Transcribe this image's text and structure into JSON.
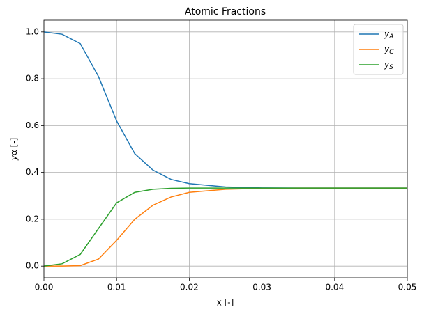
{
  "chart_data": {
    "type": "line",
    "title": "Atomic Fractions",
    "xlabel": "x [-]",
    "ylabel": "yα [-]",
    "x": [
      0,
      0.0025,
      0.005,
      0.0075,
      0.01,
      0.0125,
      0.015,
      0.0175,
      0.02,
      0.025,
      0.03,
      0.035,
      0.04,
      0.045,
      0.05
    ],
    "series": [
      {
        "name": "yA",
        "color": "#1f77b4",
        "values": [
          1.0,
          0.99,
          0.95,
          0.81,
          0.62,
          0.48,
          0.41,
          0.37,
          0.352,
          0.338,
          0.334,
          0.333,
          0.333,
          0.333,
          0.333
        ]
      },
      {
        "name": "yC",
        "color": "#ff7f0e",
        "values": [
          0,
          0,
          0.002,
          0.03,
          0.11,
          0.2,
          0.26,
          0.295,
          0.315,
          0.328,
          0.332,
          0.333,
          0.333,
          0.333,
          0.333
        ]
      },
      {
        "name": "yS",
        "color": "#2ca02c",
        "values": [
          0,
          0.01,
          0.05,
          0.16,
          0.27,
          0.315,
          0.328,
          0.332,
          0.333,
          0.333,
          0.333,
          0.333,
          0.333,
          0.333,
          0.333
        ]
      }
    ],
    "xlim": [
      0,
      0.05
    ],
    "xticks": [
      {
        "value": 0,
        "label": "0.00"
      },
      0.01,
      0.02,
      0.03,
      0.04,
      0.05
    ],
    "ylim": [
      -0.05,
      1.05
    ],
    "yticks": [
      {
        "value": 0,
        "label": "0.0"
      },
      0.2,
      0.4,
      0.6,
      0.8,
      {
        "value": 1,
        "label": "1.0"
      }
    ],
    "grid": true,
    "legend": "upper right"
  }
}
